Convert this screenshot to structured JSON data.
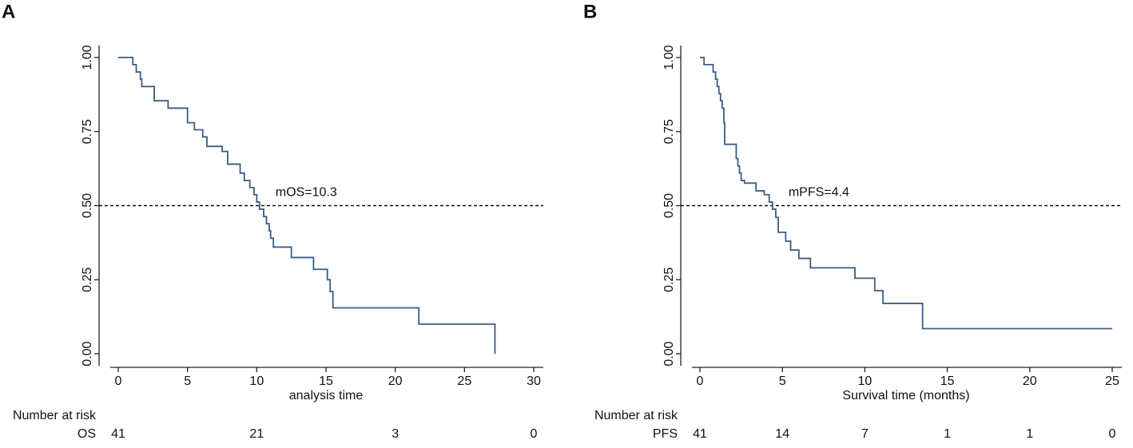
{
  "chart_data": [
    {
      "type": "step",
      "panel": "A",
      "x_label": "analysis time",
      "color": "#3a5c82",
      "x": [
        0,
        1.05,
        1.3,
        1.6,
        1.7,
        2.6,
        3.6,
        5.0,
        5.5,
        6.1,
        6.4,
        7.5,
        7.9,
        8.8,
        9.1,
        9.5,
        9.8,
        10.0,
        10.2,
        10.5,
        10.7,
        10.9,
        11.0,
        11.2,
        12.5,
        14.1,
        15.1,
        15.3,
        15.5,
        21.7,
        27.2
      ],
      "values": [
        1.0,
        0.976,
        0.951,
        0.927,
        0.902,
        0.854,
        0.829,
        0.78,
        0.756,
        0.732,
        0.7,
        0.683,
        0.64,
        0.61,
        0.585,
        0.561,
        0.537,
        0.512,
        0.488,
        0.463,
        0.439,
        0.415,
        0.39,
        0.36,
        0.325,
        0.285,
        0.25,
        0.21,
        0.155,
        0.1,
        0.0
      ],
      "reference_line": 0.5,
      "annotation": "mOS=10.3",
      "xlim": [
        0,
        30
      ],
      "xticks": [
        0,
        5,
        10,
        15,
        20,
        25,
        30
      ],
      "ylim": [
        0,
        1
      ],
      "yticks": [
        {
          "value": 0,
          "label": "0.00"
        },
        {
          "value": 0.25,
          "label": "0.25"
        },
        {
          "value": 0.5,
          "label": "0.50"
        },
        {
          "value": 0.75,
          "label": "0.75"
        },
        {
          "value": 1,
          "label": "1.00"
        }
      ],
      "risk_table": {
        "title": "Number at risk",
        "name": "OS",
        "times": [
          0,
          10,
          20,
          30
        ],
        "counts": [
          41,
          21,
          3,
          0
        ]
      }
    },
    {
      "type": "step",
      "panel": "B",
      "x_label": "Survival time (months)",
      "color": "#3a5c82",
      "x": [
        0,
        0.25,
        0.8,
        0.95,
        1.05,
        1.15,
        1.25,
        1.35,
        1.45,
        1.5,
        2.2,
        2.3,
        2.4,
        2.5,
        2.7,
        3.4,
        3.9,
        4.2,
        4.4,
        4.6,
        4.75,
        5.2,
        5.5,
        6.0,
        6.7,
        9.4,
        10.6,
        11.1,
        13.5,
        25
      ],
      "values": [
        1.0,
        0.976,
        0.951,
        0.927,
        0.902,
        0.878,
        0.854,
        0.829,
        0.78,
        0.707,
        0.659,
        0.634,
        0.61,
        0.585,
        0.576,
        0.55,
        0.537,
        0.512,
        0.488,
        0.46,
        0.41,
        0.38,
        0.35,
        0.322,
        0.29,
        0.255,
        0.213,
        0.17,
        0.085,
        0.085
      ],
      "reference_line": 0.5,
      "annotation": "mPFS=4.4",
      "xlim": [
        0,
        25
      ],
      "xticks": [
        0,
        5,
        10,
        15,
        20,
        25
      ],
      "ylim": [
        0,
        1
      ],
      "yticks": [
        {
          "value": 0,
          "label": "0.00"
        },
        {
          "value": 0.25,
          "label": "0.25"
        },
        {
          "value": 0.5,
          "label": "0.50"
        },
        {
          "value": 0.75,
          "label": "0.75"
        },
        {
          "value": 1,
          "label": "1.00"
        }
      ],
      "risk_table": {
        "title": "Number at risk",
        "name": "PFS",
        "times": [
          0,
          5,
          10,
          15,
          20,
          25
        ],
        "counts": [
          41,
          14,
          7,
          1,
          1,
          0
        ]
      }
    }
  ]
}
